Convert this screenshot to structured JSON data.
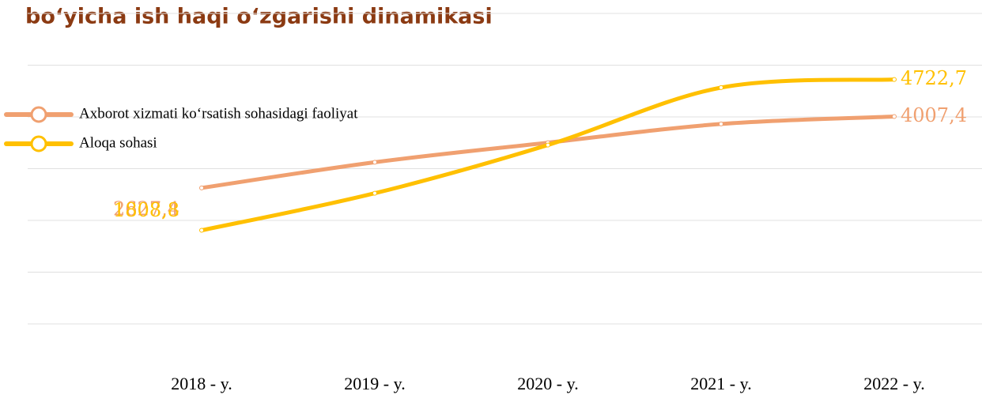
{
  "chart_data": {
    "type": "line",
    "title": "bo‘yicha ish haqi o‘zgarishi dinamikasi",
    "categories": [
      "2018 - y.",
      "2019 - y.",
      "2020 - y.",
      "2021 - y.",
      "2022 - y."
    ],
    "series": [
      {
        "name": "Axborot xizmati ko‘rsatish  sohasidagi faoliyat",
        "color": "#f0a070",
        "values": [
          2627.4,
          3124,
          3502,
          3864,
          4007.4
        ],
        "value_labels": [
          "2627,4",
          null,
          null,
          null,
          "4007,4"
        ]
      },
      {
        "name": "Aloqa sohasi",
        "color": "#ffc000",
        "values": [
          1808.8,
          2525,
          3457,
          4567,
          4722.7
        ],
        "value_labels": [
          "1808,8",
          null,
          null,
          null,
          "4722,7"
        ]
      }
    ],
    "ylim": [
      0,
      6000
    ],
    "yticks": [
      0,
      1000,
      2000,
      3000,
      4000,
      5000,
      6000
    ],
    "grid": true
  }
}
